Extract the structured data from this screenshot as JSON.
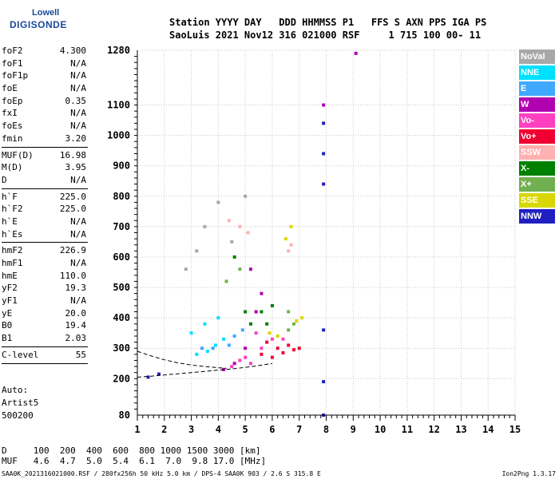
{
  "logo": {
    "line1": "Lowell",
    "line2": "DIGISONDE"
  },
  "header": {
    "labels": "Station YYYY DAY   DDD HHMMSS P1   FFS S AXN PPS IGA PS",
    "values": "SaoLuis 2021 Nov12 316 021000 RSF     1 715 100 00- 11"
  },
  "params": {
    "group1": [
      {
        "k": "foF2",
        "v": "4.300"
      },
      {
        "k": "foF1",
        "v": "N/A"
      },
      {
        "k": "foF1p",
        "v": "N/A"
      },
      {
        "k": "foE",
        "v": "N/A"
      },
      {
        "k": "foEp",
        "v": "0.35"
      },
      {
        "k": "fxI",
        "v": "N/A"
      },
      {
        "k": "foEs",
        "v": "N/A"
      },
      {
        "k": "fmin",
        "v": "3.20"
      }
    ],
    "group2": [
      {
        "k": "MUF(D)",
        "v": "16.98"
      },
      {
        "k": "M(D)",
        "v": "3.95"
      },
      {
        "k": "D",
        "v": "N/A"
      }
    ],
    "group3": [
      {
        "k": "h`F",
        "v": "225.0"
      },
      {
        "k": "h`F2",
        "v": "225.0"
      },
      {
        "k": "h`E",
        "v": "N/A"
      },
      {
        "k": "h`Es",
        "v": "N/A"
      }
    ],
    "group4": [
      {
        "k": "hmF2",
        "v": "226.9"
      },
      {
        "k": "hmF1",
        "v": "N/A"
      },
      {
        "k": "hmE",
        "v": "110.0"
      },
      {
        "k": "yF2",
        "v": "19.3"
      },
      {
        "k": "yF1",
        "v": "N/A"
      },
      {
        "k": "yE",
        "v": "20.0"
      },
      {
        "k": "B0",
        "v": "19.4"
      },
      {
        "k": "B1",
        "v": "2.03"
      }
    ],
    "group5": [
      {
        "k": "C-level",
        "v": "55"
      }
    ]
  },
  "auto": {
    "line1": "Auto:",
    "line2": "Artist5",
    "line3": "500200"
  },
  "bottom": {
    "d_line": "D     100  200  400  600  800 1000 1500 3000 [km]",
    "muf_line": "MUF   4.6  4.7  5.0  5.4  6.1  7.0  9.8 17.0 [MHz]"
  },
  "footer": {
    "left": "SAA0K_2021316021000.RSF / 280fx256h 50 kHz 5.0 km / DPS-4 SAA0K 903 / 2.6 S 315.8 E",
    "right": "Ion2Png 1.3.17"
  },
  "legend": [
    {
      "label": "NoVal",
      "color": "#a8a8a8"
    },
    {
      "label": "NNE",
      "color": "#00e0ff"
    },
    {
      "label": "E",
      "color": "#40a8ff"
    },
    {
      "label": "W",
      "color": "#b000b0"
    },
    {
      "label": "Vo-",
      "color": "#ff40c0"
    },
    {
      "label": "Vo+",
      "color": "#f00030"
    },
    {
      "label": "SSW",
      "color": "#ffb0b0"
    },
    {
      "label": "X-",
      "color": "#008000"
    },
    {
      "label": "X+",
      "color": "#70b050"
    },
    {
      "label": "SSE",
      "color": "#d8d800"
    },
    {
      "label": "NNW",
      "color": "#2020c0"
    }
  ],
  "chart_data": {
    "type": "scatter",
    "xlim": [
      1,
      15
    ],
    "ylim": [
      80,
      1280
    ],
    "x_ticks": [
      1,
      2,
      3,
      4,
      5,
      6,
      7,
      8,
      9,
      10,
      11,
      12,
      13,
      14,
      15
    ],
    "y_ticks": [
      80,
      200,
      300,
      400,
      500,
      600,
      700,
      800,
      900,
      1000,
      1100,
      1280
    ],
    "grid": true,
    "series": [
      {
        "name": "Vo+",
        "points": [
          [
            5.6,
            280
          ],
          [
            6.0,
            270
          ],
          [
            6.4,
            285
          ],
          [
            6.8,
            295
          ],
          [
            6.2,
            300
          ],
          [
            5.8,
            320
          ],
          [
            6.6,
            310
          ],
          [
            7.0,
            300
          ]
        ]
      },
      {
        "name": "Vo-",
        "points": [
          [
            4.8,
            260
          ],
          [
            5.2,
            250
          ],
          [
            5.6,
            300
          ],
          [
            6.0,
            330
          ],
          [
            4.5,
            240
          ],
          [
            5.0,
            270
          ],
          [
            6.4,
            330
          ],
          [
            5.4,
            350
          ]
        ]
      },
      {
        "name": "W",
        "points": [
          [
            4.2,
            230
          ],
          [
            4.6,
            250
          ],
          [
            5.0,
            300
          ],
          [
            5.4,
            420
          ],
          [
            5.6,
            480
          ],
          [
            5.2,
            560
          ],
          [
            7.9,
            1100
          ],
          [
            9.1,
            1270
          ]
        ]
      },
      {
        "name": "NNE",
        "points": [
          [
            3.2,
            280
          ],
          [
            3.6,
            290
          ],
          [
            3.9,
            310
          ],
          [
            4.2,
            330
          ],
          [
            3.5,
            380
          ],
          [
            4.0,
            400
          ],
          [
            3.0,
            350
          ]
        ]
      },
      {
        "name": "E",
        "points": [
          [
            3.8,
            300
          ],
          [
            4.4,
            310
          ],
          [
            4.6,
            340
          ],
          [
            3.4,
            300
          ],
          [
            4.9,
            360
          ]
        ]
      },
      {
        "name": "X-",
        "points": [
          [
            5.6,
            420
          ],
          [
            6.0,
            440
          ],
          [
            5.2,
            380
          ],
          [
            4.6,
            600
          ],
          [
            5.8,
            380
          ],
          [
            5.0,
            420
          ]
        ]
      },
      {
        "name": "X+",
        "points": [
          [
            6.6,
            360
          ],
          [
            6.8,
            380
          ],
          [
            4.3,
            520
          ],
          [
            4.8,
            560
          ],
          [
            6.6,
            420
          ]
        ]
      },
      {
        "name": "SSE",
        "points": [
          [
            6.5,
            660
          ],
          [
            6.7,
            700
          ],
          [
            6.9,
            390
          ],
          [
            7.1,
            400
          ],
          [
            5.9,
            350
          ],
          [
            6.2,
            340
          ]
        ]
      },
      {
        "name": "NNW",
        "points": [
          [
            7.9,
            1040
          ],
          [
            7.9,
            940
          ],
          [
            7.9,
            840
          ],
          [
            7.9,
            360
          ],
          [
            7.9,
            190
          ],
          [
            7.9,
            80
          ],
          [
            1.4,
            205
          ],
          [
            1.8,
            215
          ]
        ]
      },
      {
        "name": "SSW",
        "points": [
          [
            6.6,
            620
          ],
          [
            6.7,
            640
          ],
          [
            4.4,
            720
          ],
          [
            4.8,
            700
          ],
          [
            5.1,
            680
          ]
        ]
      },
      {
        "name": "NoVal",
        "points": [
          [
            5.0,
            800
          ],
          [
            4.0,
            780
          ],
          [
            3.5,
            700
          ],
          [
            4.5,
            650
          ],
          [
            2.8,
            560
          ],
          [
            3.2,
            620
          ]
        ]
      }
    ],
    "traces": [
      {
        "name": "O-trace",
        "color": "#000000",
        "dash": true,
        "points": [
          [
            1.0,
            205
          ],
          [
            1.5,
            208
          ],
          [
            2.0,
            212
          ],
          [
            2.5,
            216
          ],
          [
            3.0,
            220
          ],
          [
            3.5,
            224
          ],
          [
            4.0,
            228
          ],
          [
            4.5,
            232
          ],
          [
            5.0,
            237
          ],
          [
            5.5,
            243
          ],
          [
            6.0,
            250
          ]
        ]
      },
      {
        "name": "X-trace",
        "color": "#000000",
        "dash": true,
        "points": [
          [
            1.0,
            290
          ],
          [
            1.5,
            275
          ],
          [
            2.0,
            262
          ],
          [
            2.5,
            252
          ],
          [
            3.0,
            245
          ],
          [
            3.5,
            240
          ],
          [
            4.0,
            236
          ],
          [
            4.3,
            234
          ]
        ]
      }
    ]
  }
}
